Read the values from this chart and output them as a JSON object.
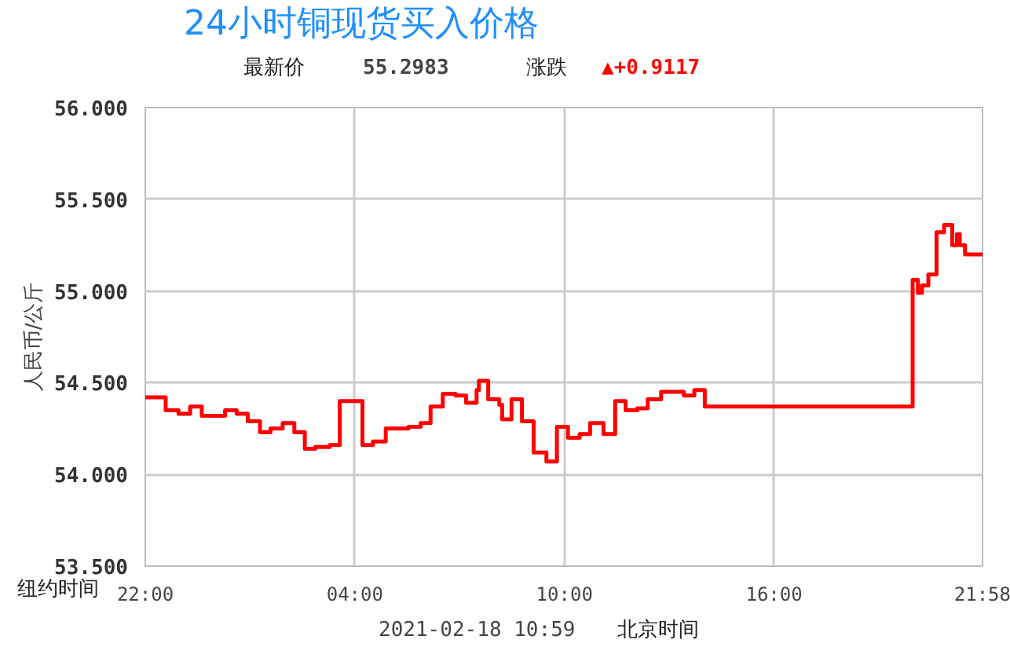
{
  "chart_data": {
    "type": "step",
    "title": "24小时铜现货买入价格",
    "ylabel": "人民币/公斤",
    "annotations": [
      "最新价",
      "55.2983",
      "涨跌",
      "▲+0.9117",
      "纽约时间",
      "2021-02-18 10:59",
      "北京时间"
    ],
    "x": [
      "2021-02-16T22:00",
      "2021-02-16T22:35",
      "2021-02-16T22:57",
      "2021-02-16T23:17",
      "2021-02-16T23:37",
      "2021-02-17T00:17",
      "2021-02-17T00:37",
      "2021-02-17T00:56",
      "2021-02-17T01:17",
      "2021-02-17T01:35",
      "2021-02-17T01:56",
      "2021-02-17T02:16",
      "2021-02-17T02:34",
      "2021-02-17T02:52",
      "2021-02-17T03:17",
      "2021-02-17T03:34",
      "2021-02-17T04:13",
      "2021-02-17T04:31",
      "2021-02-17T04:53",
      "2021-02-17T05:32",
      "2021-02-17T05:53",
      "2021-02-17T06:10",
      "2021-02-17T06:31",
      "2021-02-17T06:53",
      "2021-02-17T07:11",
      "2021-02-17T07:29",
      "2021-02-17T07:33",
      "2021-02-17T07:49",
      "2021-02-17T08:08",
      "2021-02-17T08:13",
      "2021-02-17T08:29",
      "2021-02-17T08:47",
      "2021-02-17T09:07",
      "2021-02-17T09:29",
      "2021-02-17T09:47",
      "2021-02-17T10:06",
      "2021-02-17T10:26",
      "2021-02-17T10:44",
      "2021-02-17T11:07",
      "2021-02-17T11:27",
      "2021-02-17T11:45",
      "2021-02-17T12:05",
      "2021-02-17T12:23",
      "2021-02-17T12:46",
      "2021-02-17T13:25",
      "2021-02-17T13:43",
      "2021-02-17T14:01",
      "2021-02-17T19:58",
      "2021-02-17T20:07",
      "2021-02-17T20:14",
      "2021-02-17T20:25",
      "2021-02-17T20:39",
      "2021-02-17T20:52",
      "2021-02-17T21:06",
      "2021-02-17T21:14",
      "2021-02-17T21:19",
      "2021-02-17T21:28",
      "2021-02-17T21:38",
      "2021-02-17T21:58"
    ],
    "series": [
      {
        "color": "#ff0000",
        "values": [
          54.42,
          54.35,
          54.33,
          54.37,
          54.32,
          54.35,
          54.33,
          54.29,
          54.23,
          54.25,
          54.28,
          54.23,
          54.14,
          54.15,
          54.16,
          54.4,
          54.16,
          54.18,
          54.25,
          54.26,
          54.28,
          54.37,
          54.44,
          54.43,
          54.39,
          54.46,
          54.51,
          54.41,
          54.38,
          54.3,
          54.41,
          54.29,
          54.12,
          54.07,
          54.26,
          54.2,
          54.22,
          54.28,
          54.22,
          54.4,
          54.35,
          54.36,
          54.41,
          54.45,
          54.43,
          54.46,
          54.37,
          55.06,
          54.99,
          55.03,
          55.09,
          55.32,
          55.36,
          55.25,
          55.31,
          55.25,
          55.2,
          55.2,
          55.2
        ]
      }
    ],
    "xlim": [
      "2021-02-16T22:00",
      "2021-02-17T21:58"
    ],
    "xticks": [
      {
        "value": "2021-02-16T22:00",
        "label": "22:00"
      },
      {
        "value": "2021-02-17T04:00",
        "label": "04:00"
      },
      {
        "value": "2021-02-17T10:00",
        "label": "10:00"
      },
      {
        "value": "2021-02-17T16:00",
        "label": "16:00"
      },
      {
        "value": "2021-02-17T21:58",
        "label": "21:58"
      }
    ],
    "ylim": [
      53.5,
      56
    ],
    "yticks": [
      {
        "value": 53.5,
        "label": "53.500"
      },
      {
        "value": 54,
        "label": "54.000"
      },
      {
        "value": 54.5,
        "label": "54.500"
      },
      {
        "value": 55,
        "label": "55.000"
      },
      {
        "value": 55.5,
        "label": "55.500"
      },
      {
        "value": 56,
        "label": "56.000"
      }
    ],
    "grid": true
  }
}
